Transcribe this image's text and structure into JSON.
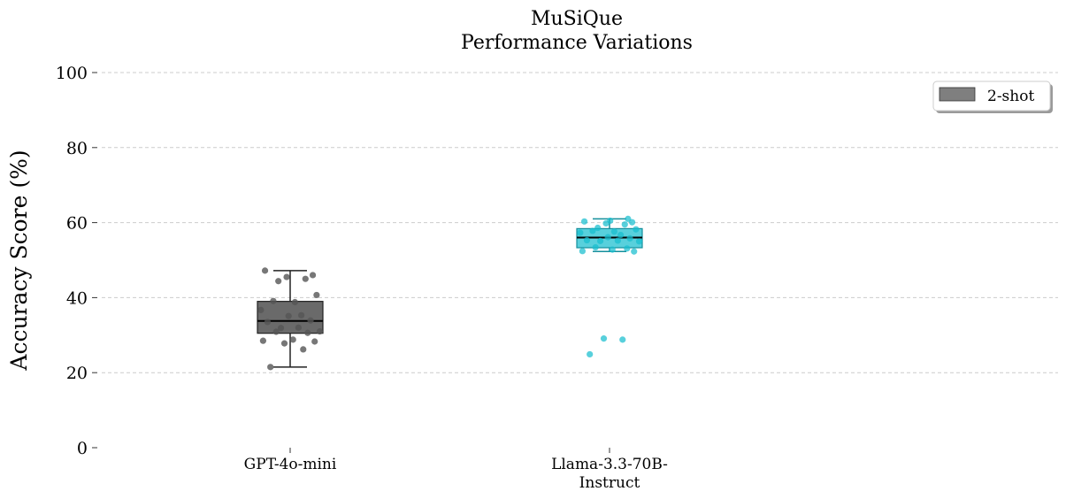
{
  "chart_data": {
    "type": "box",
    "title": [
      "MuSiQue",
      "Performance Variations"
    ],
    "ylabel": "Accuracy Score (%)",
    "xlabel": "",
    "ylim": [
      0,
      100
    ],
    "yticks": [
      0,
      20,
      40,
      60,
      80,
      100
    ],
    "grid": true,
    "legend": {
      "placement": "top-right",
      "entries": [
        {
          "label": "2-shot",
          "color": "#555555"
        }
      ]
    },
    "categories": [
      {
        "label_lines": [
          "GPT-4o-mini"
        ],
        "label": "GPT-4o-mini"
      },
      {
        "label_lines": [
          "Llama-3.3-70B-",
          "Instruct"
        ],
        "label": "Llama-3.3-70B-Instruct"
      }
    ],
    "series": [
      {
        "category": "GPT-4o-mini",
        "color": "#555555",
        "box": {
          "whisker_low": 21.5,
          "q1": 30.5,
          "median": 33.8,
          "q3": 39.0,
          "whisker_high": 47.2
        },
        "points": [
          21.5,
          26.2,
          27.8,
          28.3,
          28.5,
          28.8,
          30.6,
          30.9,
          31.0,
          31.9,
          32.0,
          33.5,
          33.9,
          35.1,
          35.3,
          36.7,
          38.8,
          39.1,
          40.7,
          44.4,
          45.0,
          45.5,
          46.0,
          47.2
        ]
      },
      {
        "category": "Llama-3.3-70B-Instruct",
        "color": "#17becf",
        "box": {
          "whisker_low": 52.3,
          "q1": 53.3,
          "median": 56.0,
          "q3": 58.4,
          "whisker_high": 61.0
        },
        "points": [
          24.9,
          28.8,
          29.1,
          52.3,
          52.4,
          52.8,
          53.1,
          53.4,
          55.0,
          55.1,
          55.2,
          55.3,
          55.8,
          56.1,
          56.7,
          57.3,
          57.6,
          57.8,
          58.2,
          58.6,
          59.5,
          59.8,
          60.1,
          60.3,
          60.5,
          61.0
        ]
      }
    ]
  }
}
